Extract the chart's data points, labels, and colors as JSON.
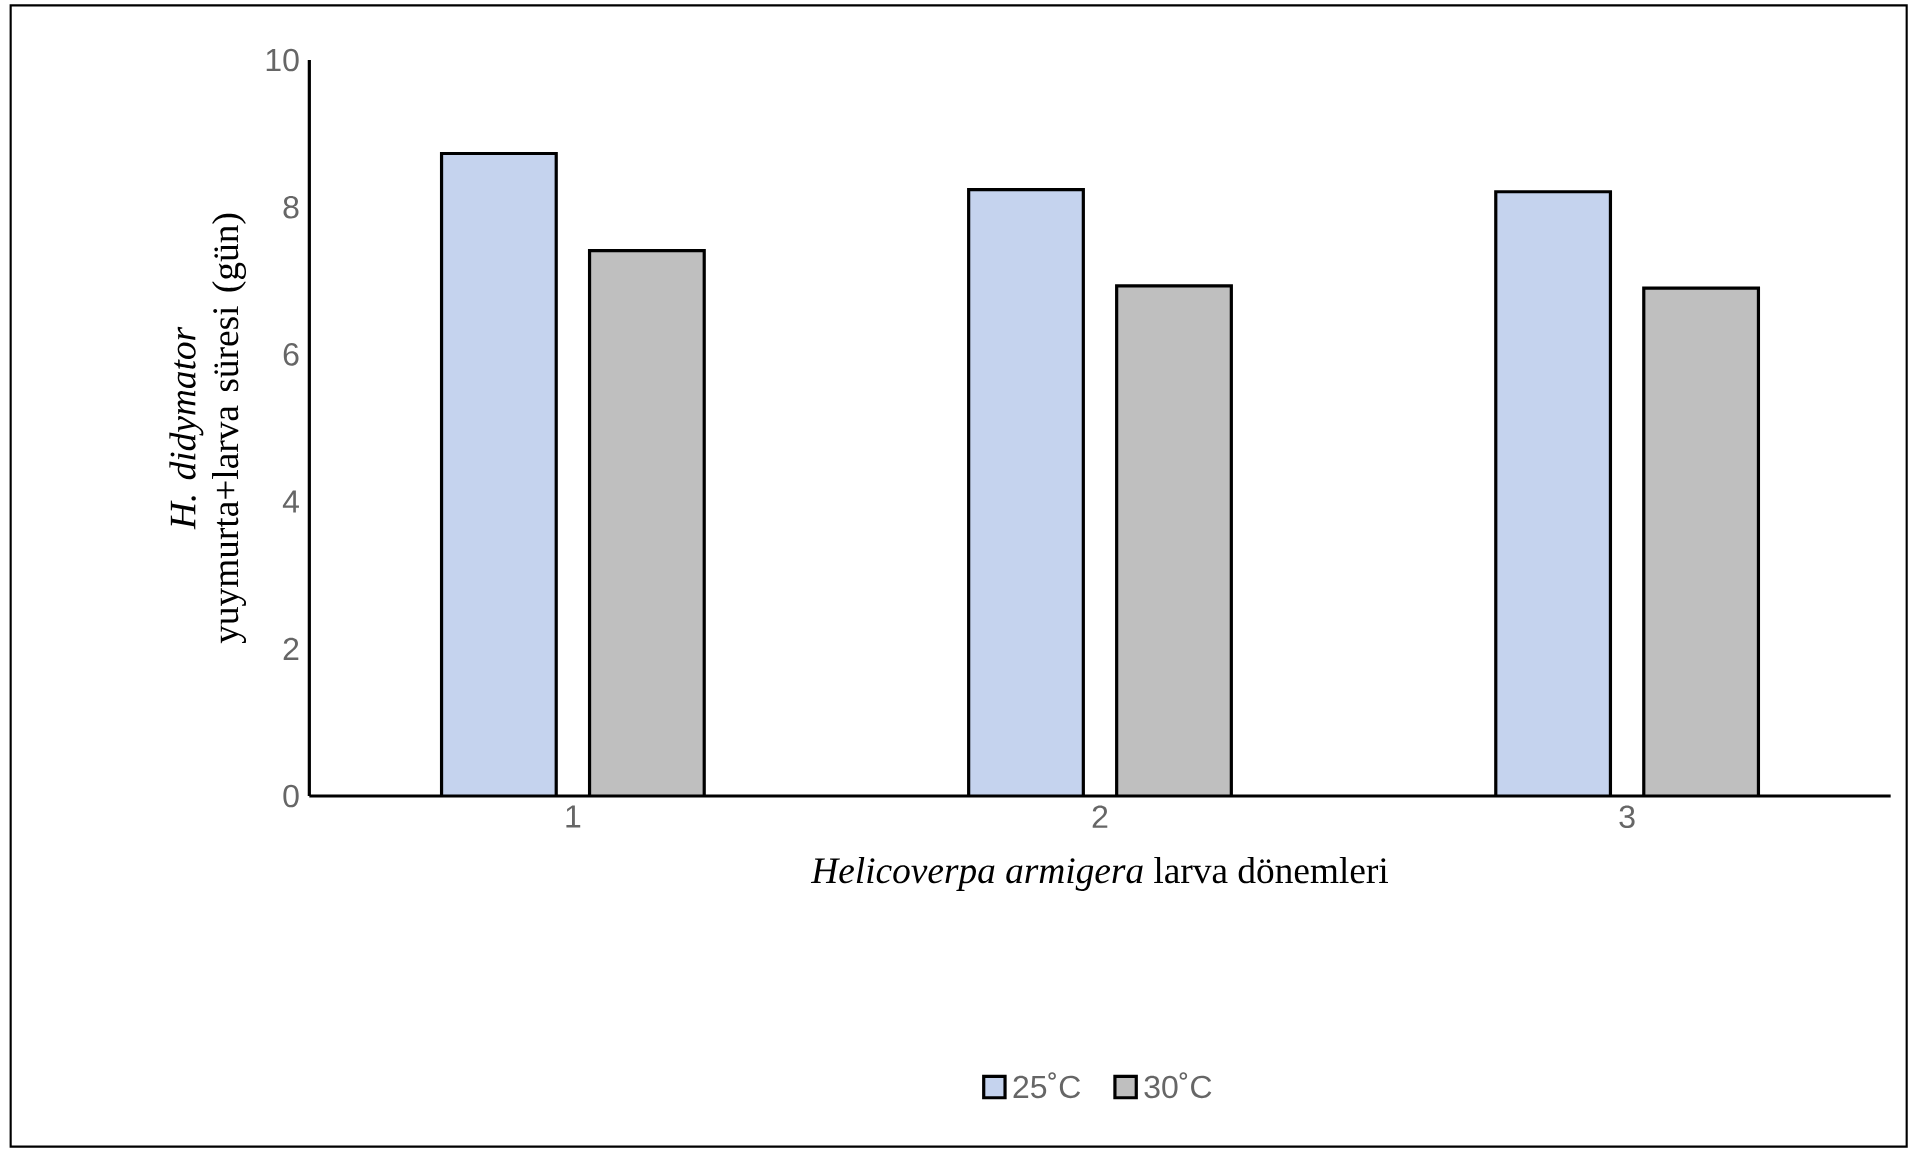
{
  "chart_data": {
    "type": "bar",
    "xlabel": "*Helicoverpa armigera* larva dönemleri",
    "ylabel": "*H. didymator* yuymurta+larva süresi (gün)",
    "categories": [
      "1",
      "2",
      "3"
    ],
    "series": [
      {
        "name": "25˚C",
        "color": "#c5d3ee",
        "values": [
          8.73,
          8.24,
          8.21
        ]
      },
      {
        "name": "30˚C",
        "color": "#bfbfbf",
        "values": [
          7.41,
          6.93,
          6.9
        ]
      }
    ],
    "ylim": [
      0,
      10
    ],
    "yticks": [
      0,
      2,
      4,
      6,
      8,
      10
    ],
    "grid": false,
    "legend": "bottom"
  }
}
